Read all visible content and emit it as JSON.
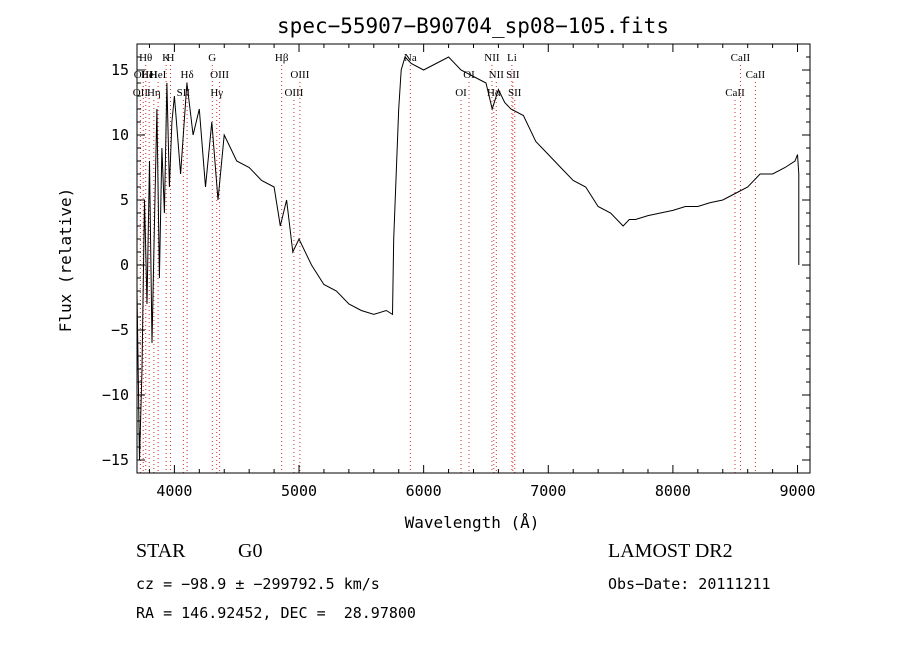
{
  "chart_data": {
    "type": "line",
    "title": "spec−55907−B90704_sp08−105.fits",
    "xlabel": "Wavelength (Å)",
    "ylabel": "Flux (relative)",
    "xlim": [
      3700,
      9100
    ],
    "ylim": [
      -16,
      17
    ],
    "x_ticks": [
      4000,
      5000,
      6000,
      7000,
      8000,
      9000
    ],
    "x_tick_labels": [
      "4000",
      "5000",
      "6000",
      "7000",
      "8000",
      "9000"
    ],
    "y_ticks": [
      -15,
      -10,
      -5,
      0,
      5,
      10,
      15
    ],
    "y_tick_labels": [
      "−15",
      "−10",
      "−5",
      "0",
      "5",
      "10",
      "15"
    ],
    "grid": false,
    "line_color": "#000000",
    "marker_color": "#d62728",
    "series": [
      {
        "x": [
          3700,
          3720,
          3740,
          3760,
          3780,
          3800,
          3820,
          3840,
          3860,
          3880,
          3900,
          3920,
          3940,
          3960,
          3980,
          4000,
          4050,
          4100,
          4150,
          4200,
          4250,
          4300,
          4350,
          4400,
          4450,
          4500,
          4600,
          4700,
          4800,
          4850,
          4900,
          4950,
          5000,
          5100,
          5200,
          5300,
          5400,
          5500,
          5600,
          5700,
          5750,
          5760,
          5780,
          5800,
          5820,
          5850,
          5900,
          6000,
          6100,
          6200,
          6300,
          6400,
          6500,
          6550,
          6600,
          6650,
          6700,
          6800,
          6900,
          7000,
          7100,
          7200,
          7300,
          7400,
          7500,
          7600,
          7650,
          7700,
          7800,
          7900,
          8000,
          8100,
          8200,
          8300,
          8400,
          8500,
          8600,
          8700,
          8800,
          8900,
          8980,
          9000,
          9010,
          9010
        ],
        "y": [
          -2,
          -15,
          -8,
          5,
          -3,
          8,
          -6,
          3,
          12,
          -1,
          9,
          4,
          14,
          6,
          11,
          13,
          7,
          14,
          10,
          12,
          6,
          11,
          5,
          10,
          9,
          8,
          7.5,
          6.5,
          6,
          3,
          5,
          1,
          2,
          0,
          -1.5,
          -2,
          -3,
          -3.5,
          -3.8,
          -3.5,
          -3.8,
          2,
          7,
          12,
          15,
          16,
          15.5,
          15,
          15.5,
          16,
          15,
          14.5,
          14,
          12,
          13.5,
          12.5,
          12,
          11.5,
          9.5,
          8.5,
          7.5,
          6.5,
          6,
          4.5,
          4,
          3,
          3.5,
          3.5,
          3.8,
          4,
          4.2,
          4.5,
          4.5,
          4.8,
          5,
          5.5,
          6,
          7,
          7,
          7.5,
          8,
          8.5,
          7,
          0
        ]
      }
    ],
    "line_markers": [
      {
        "x": 3727,
        "label": "OII",
        "row": 2
      },
      {
        "x": 3750,
        "label": "OIII",
        "row": 1
      },
      {
        "x": 3770,
        "label": "Hθ",
        "row": 0
      },
      {
        "x": 3798,
        "label": "HeI",
        "row": 1
      },
      {
        "x": 3835,
        "label": "Hη",
        "row": 2
      },
      {
        "x": 3869,
        "label": "HeI",
        "row": 1
      },
      {
        "x": 3934,
        "label": "K",
        "row": 0
      },
      {
        "x": 3969,
        "label": "H",
        "row": 0
      },
      {
        "x": 4072,
        "label": "SII",
        "row": 2
      },
      {
        "x": 4102,
        "label": "Hδ",
        "row": 1
      },
      {
        "x": 4304,
        "label": "G",
        "row": 0
      },
      {
        "x": 4340,
        "label": "Hγ",
        "row": 2
      },
      {
        "x": 4363,
        "label": "OIII",
        "row": 1
      },
      {
        "x": 4861,
        "label": "Hβ",
        "row": 0
      },
      {
        "x": 4959,
        "label": "OIII",
        "row": 2
      },
      {
        "x": 5007,
        "label": "OIII",
        "row": 1
      },
      {
        "x": 5893,
        "label": "Na",
        "row": 0
      },
      {
        "x": 6300,
        "label": "OI",
        "row": 2
      },
      {
        "x": 6364,
        "label": "OI",
        "row": 1
      },
      {
        "x": 6548,
        "label": "NII",
        "row": 0
      },
      {
        "x": 6563,
        "label": "Hα",
        "row": 2
      },
      {
        "x": 6583,
        "label": "NII",
        "row": 1
      },
      {
        "x": 6708,
        "label": "Li",
        "row": 0
      },
      {
        "x": 6716,
        "label": "SII",
        "row": 1
      },
      {
        "x": 6731,
        "label": "SII",
        "row": 2
      },
      {
        "x": 8498,
        "label": "CaII",
        "row": 2
      },
      {
        "x": 8542,
        "label": "CaII",
        "row": 0
      },
      {
        "x": 8662,
        "label": "CaII",
        "row": 1
      }
    ]
  },
  "info": {
    "object_class": "STAR",
    "subclass": "G0",
    "survey": "LAMOST DR2",
    "cz": "cz = −98.9 ± −299792.5 km/s",
    "obs_date": "Obs−Date: 20111211",
    "coords": "RA = 146.92452, DEC =  28.97800"
  }
}
